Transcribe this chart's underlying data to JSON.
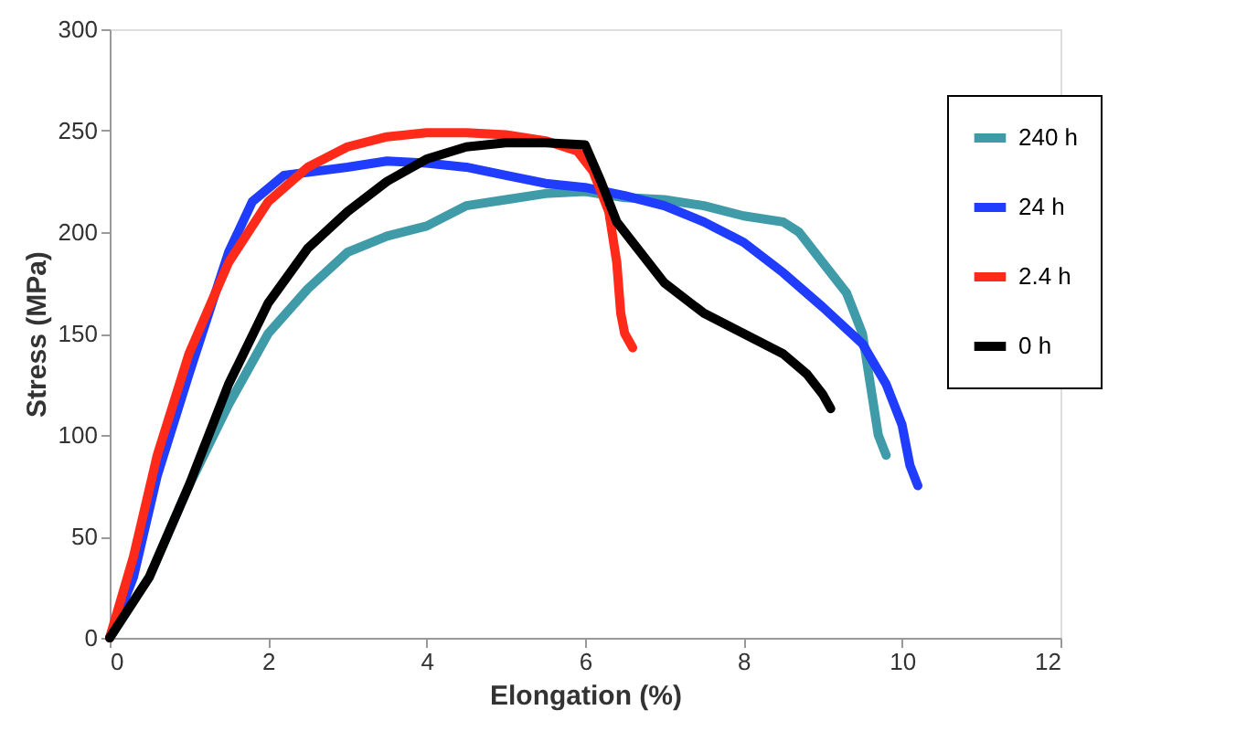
{
  "chart_data": {
    "type": "line",
    "xlabel": "Elongation (%)",
    "ylabel": "Stress (MPa)",
    "xlim": [
      0,
      12
    ],
    "xticks": [
      0,
      2,
      4,
      6,
      8,
      10,
      12
    ],
    "ylim": [
      0,
      300
    ],
    "yticks": [
      0,
      50,
      100,
      150,
      200,
      250,
      300
    ],
    "grid": false,
    "legend": "top right",
    "marker": "none",
    "line_style": "solid",
    "series": [
      {
        "name": "240 h",
        "color": "#3f9ba8",
        "x": [
          0,
          0.5,
          1,
          1.5,
          2,
          2.5,
          3,
          3.5,
          4,
          4.5,
          5,
          5.5,
          6,
          6.5,
          7,
          7.5,
          8,
          8.5,
          8.7,
          9,
          9.3,
          9.5,
          9.6,
          9.7,
          9.8
        ],
        "values": [
          0,
          30,
          75,
          115,
          150,
          172,
          190,
          198,
          203,
          213,
          216,
          219,
          220,
          217,
          216,
          213,
          208,
          205,
          200,
          185,
          170,
          150,
          125,
          100,
          90
        ]
      },
      {
        "name": "24 h",
        "color": "#1f3cff",
        "x": [
          0,
          0.3,
          0.6,
          1,
          1.5,
          1.8,
          2.2,
          3,
          3.5,
          4,
          4.5,
          5,
          5.5,
          6,
          6.5,
          7,
          7.5,
          8,
          8.5,
          9,
          9.5,
          9.8,
          10,
          10.1,
          10.2
        ],
        "values": [
          0,
          30,
          80,
          130,
          190,
          215,
          228,
          232,
          235,
          234,
          232,
          228,
          224,
          222,
          218,
          213,
          205,
          195,
          180,
          163,
          145,
          125,
          105,
          85,
          75
        ]
      },
      {
        "name": "2.4 h",
        "color": "#ff2a1a",
        "x": [
          0,
          0.3,
          0.6,
          1,
          1.5,
          2,
          2.5,
          3,
          3.5,
          4,
          4.5,
          5,
          5.5,
          5.9,
          6.1,
          6.3,
          6.4,
          6.45,
          6.5,
          6.6
        ],
        "values": [
          0,
          40,
          90,
          140,
          185,
          215,
          232,
          242,
          247,
          249,
          249,
          248,
          245,
          240,
          230,
          210,
          185,
          160,
          150,
          143
        ]
      },
      {
        "name": "0 h",
        "color": "#000000",
        "x": [
          0,
          0.5,
          1,
          1.5,
          2,
          2.5,
          3,
          3.5,
          4,
          4.5,
          5,
          5.5,
          6,
          6.2,
          6.4,
          6.6,
          7,
          7.5,
          8,
          8.5,
          8.8,
          9,
          9.1
        ],
        "values": [
          0,
          30,
          75,
          125,
          165,
          192,
          210,
          225,
          236,
          242,
          244,
          244,
          243,
          225,
          205,
          195,
          175,
          160,
          150,
          140,
          130,
          120,
          113
        ]
      }
    ]
  }
}
